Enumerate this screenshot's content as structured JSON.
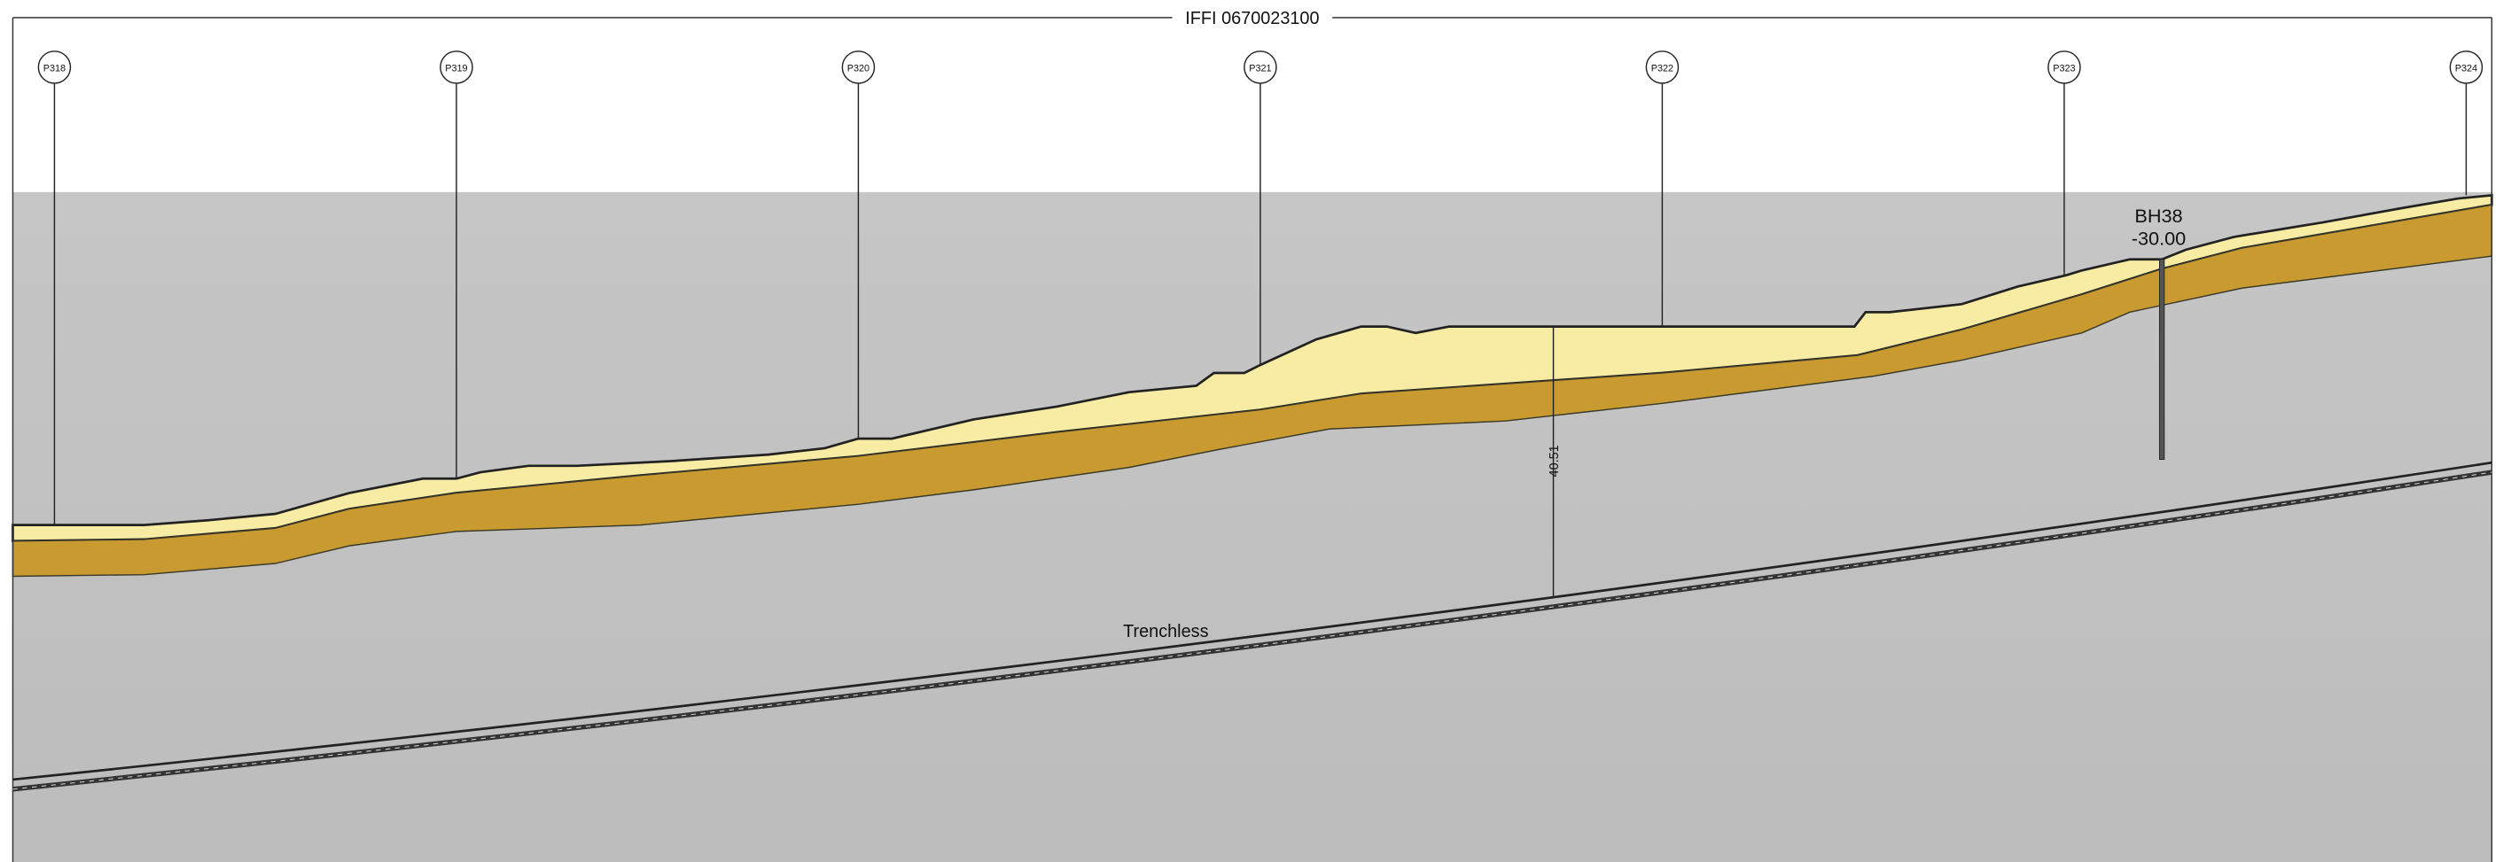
{
  "header": {
    "title": "IFFI 0670023100"
  },
  "markers": [
    {
      "label": "P318"
    },
    {
      "label": "P319"
    },
    {
      "label": "P320"
    },
    {
      "label": "P321"
    },
    {
      "label": "P322"
    },
    {
      "label": "P323"
    },
    {
      "label": "P324"
    }
  ],
  "borehole": {
    "name": "BH38",
    "depth": "-30.00"
  },
  "dimension": {
    "label": "40.51"
  },
  "pipe": {
    "label": "Trenchless"
  }
}
